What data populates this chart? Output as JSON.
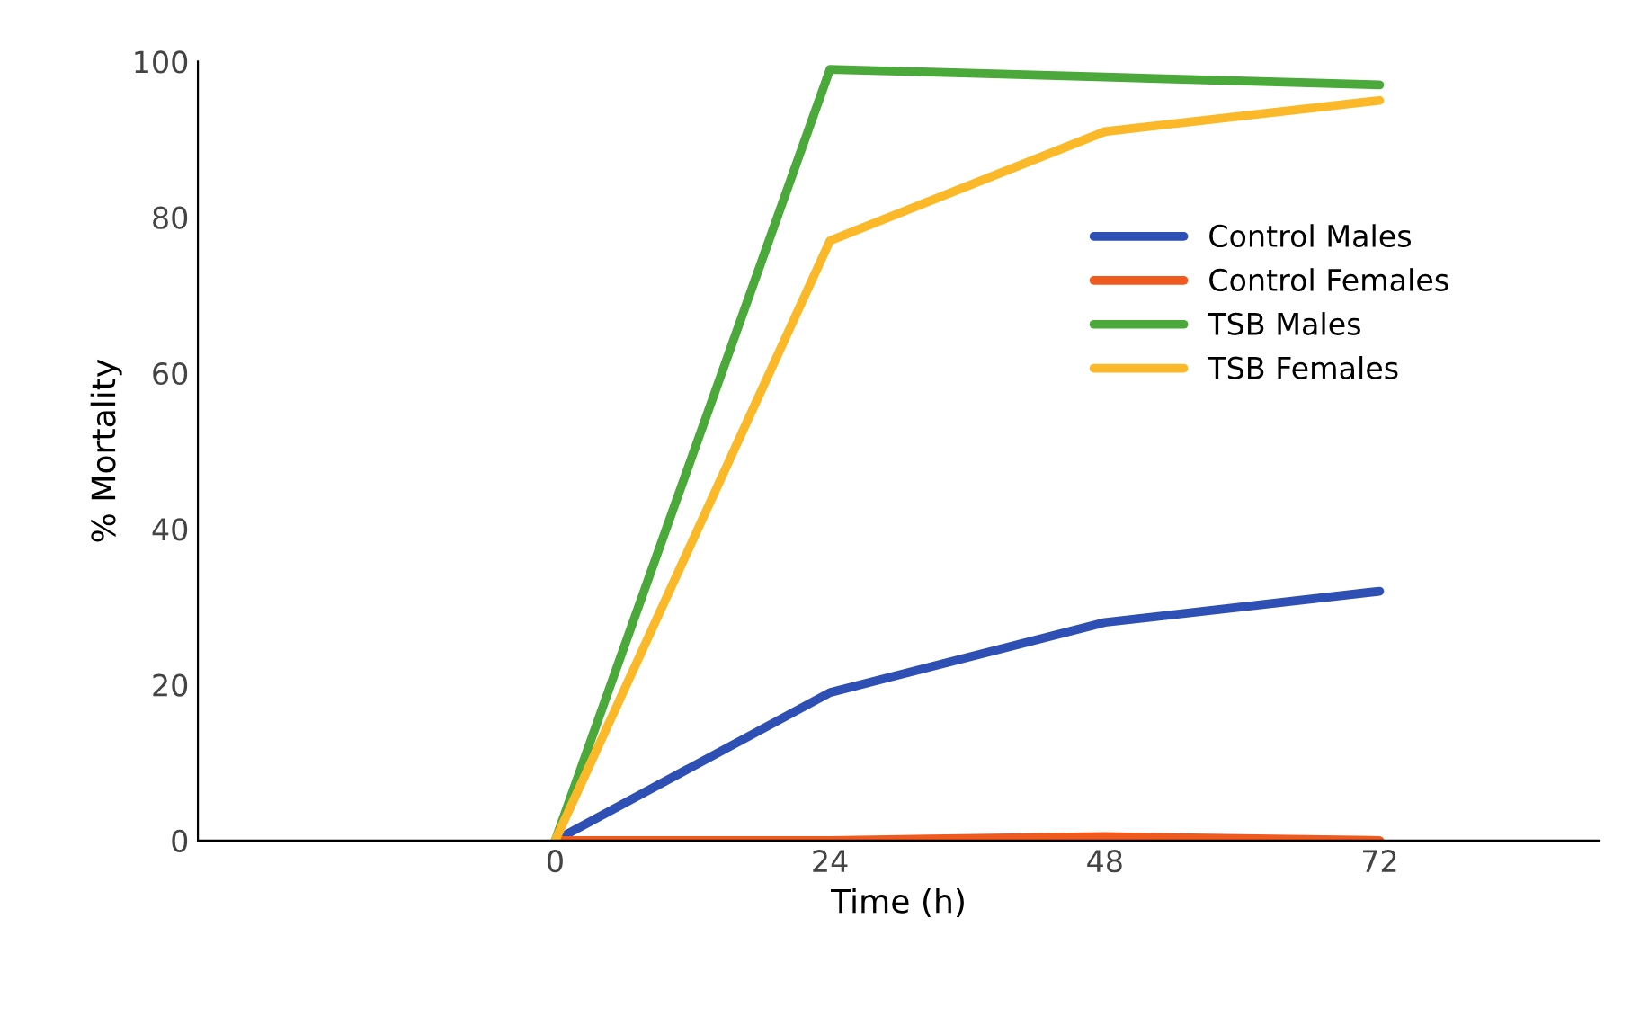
{
  "chart_data": {
    "type": "line",
    "xlabel": "Time (h)",
    "ylabel": "% Mortality",
    "categories": [
      "0",
      "24",
      "48",
      "72"
    ],
    "series": [
      {
        "name": "Control Males",
        "color": "#2e4fb3",
        "values": [
          0,
          19,
          28,
          32
        ]
      },
      {
        "name": "Control Females",
        "color": "#f05a1e",
        "values": [
          0,
          0,
          0.5,
          0
        ]
      },
      {
        "name": "TSB Males",
        "color": "#4ba83a",
        "values": [
          0,
          99,
          98,
          97
        ]
      },
      {
        "name": "TSB Females",
        "color": "#fbb829",
        "values": [
          0,
          77,
          91,
          95
        ]
      }
    ],
    "ylim": [
      0,
      100
    ],
    "yticks": [
      0,
      20,
      40,
      60,
      80,
      100
    ],
    "grid": false,
    "legend": "top right",
    "marker": "none",
    "line_style": "solid"
  }
}
